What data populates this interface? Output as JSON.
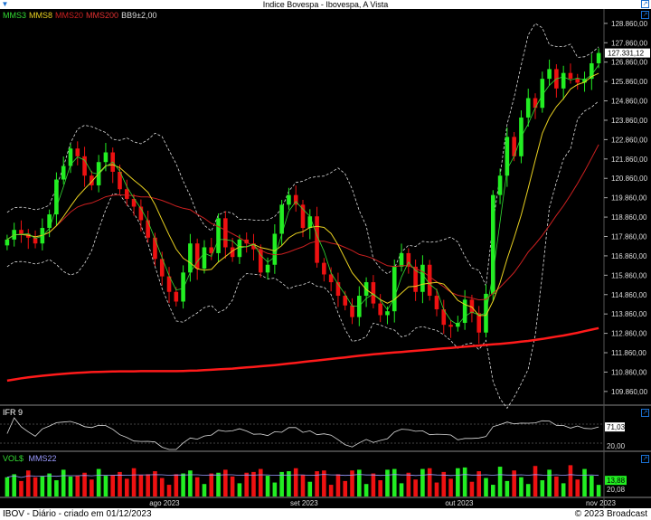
{
  "window": {
    "title": "Indice Bovespa - Ibovespa, A Vista",
    "menu_icon": "chevron-down-icon",
    "maximize_icon": "maximize-icon"
  },
  "price_panel": {
    "legend": [
      {
        "label": "MMS3",
        "color": "#33dd33"
      },
      {
        "label": "MMS8",
        "color": "#e8d020"
      },
      {
        "label": "MMS20",
        "color": "#cc2020"
      },
      {
        "label": "MMS200",
        "color": "#e03030"
      },
      {
        "label": "BB9±2,00",
        "color": "#dddddd"
      }
    ],
    "last_value_label": "127.331,12"
  },
  "ifr_panel": {
    "title": "IFR 9",
    "value_label": "71,03",
    "level_label": "20,00"
  },
  "vol_panel": {
    "title": "VOL$",
    "ma_label": "MMS22",
    "value_label": "13,88",
    "ma_value_label": "20,08"
  },
  "x_axis_labels": [
    "ago 2023",
    "set 2023",
    "out 2023",
    "nov 2023"
  ],
  "footer": {
    "left": "IBOV - Diário - criado em 01/12/2023",
    "right": "© 2023 Broadcast"
  },
  "chart_data": {
    "type": "candlestick",
    "title": "Indice Bovespa - Ibovespa, A Vista",
    "y_ticks": [
      109860,
      110860,
      111860,
      112860,
      113860,
      114860,
      115860,
      116860,
      117860,
      118860,
      119860,
      120860,
      121860,
      122860,
      123860,
      124860,
      125860,
      126860,
      127860,
      128860
    ],
    "y_tick_labels": [
      "109.860,00",
      "110.860,00",
      "111.860,00",
      "112.860,00",
      "113.860,00",
      "114.860,00",
      "115.860,00",
      "116.860,00",
      "117.860,00",
      "118.860,00",
      "119.860,00",
      "120.860,00",
      "121.860,00",
      "122.860,00",
      "123.860,00",
      "124.860,00",
      "125.860,00",
      "126.860,00",
      "127.860,00",
      "128.860,00"
    ],
    "ylim": [
      109200,
      129600
    ],
    "closes": [
      117700,
      118200,
      118000,
      117800,
      117500,
      118300,
      119000,
      120800,
      121500,
      122400,
      122000,
      121000,
      120500,
      121700,
      122200,
      121200,
      120300,
      119800,
      119400,
      118700,
      117800,
      116700,
      115800,
      115000,
      114500,
      116000,
      117500,
      116200,
      117300,
      117000,
      118800,
      117300,
      116800,
      117700,
      117500,
      117200,
      116000,
      116400,
      118000,
      119500,
      120000,
      119500,
      118300,
      118900,
      116500,
      115900,
      115500,
      114800,
      114300,
      113700,
      114800,
      115500,
      114400,
      113800,
      114000,
      116300,
      117000,
      116300,
      115000,
      116400,
      114800,
      114100,
      113300,
      113200,
      113400,
      114600,
      113900,
      112900,
      114900,
      120000,
      121000,
      123000,
      122000,
      124000,
      125000,
      124500,
      126000,
      126500,
      125500,
      126300,
      126000,
      125800,
      126000,
      126800,
      127331
    ],
    "ma200": [
      110420,
      110480,
      110540,
      110590,
      110630,
      110670,
      110710,
      110740,
      110770,
      110800,
      110820,
      110840,
      110860,
      110870,
      110880,
      110890,
      110900,
      110900,
      110900,
      110910,
      110910,
      110910,
      110910,
      110910,
      110910,
      110920,
      110930,
      110940,
      110960,
      110980,
      111000,
      111020,
      111040,
      111070,
      111100,
      111130,
      111160,
      111190,
      111220,
      111260,
      111300,
      111340,
      111380,
      111420,
      111460,
      111500,
      111540,
      111580,
      111620,
      111660,
      111700,
      111740,
      111780,
      111810,
      111840,
      111870,
      111900,
      111930,
      111960,
      111990,
      112020,
      112050,
      112080,
      112110,
      112140,
      112170,
      112200,
      112230,
      112260,
      112290,
      112320,
      112350,
      112390,
      112430,
      112470,
      112520,
      112570,
      112630,
      112690,
      112750,
      112820,
      112890,
      112970,
      113050,
      113130
    ],
    "ifr9": {
      "last": 71.03,
      "level": 20.0,
      "ylim": [
        0,
        100
      ]
    },
    "volume": {
      "last": 13.88,
      "ma22": 20.08
    },
    "x_labels": [
      "ago 2023",
      "set 2023",
      "out 2023",
      "nov 2023"
    ]
  }
}
